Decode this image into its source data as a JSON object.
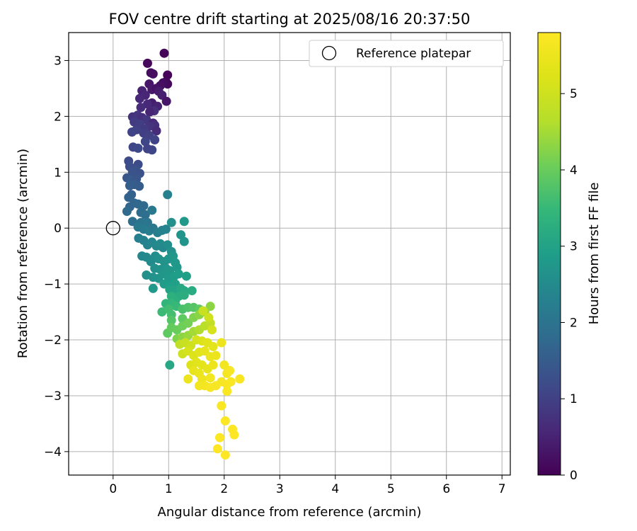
{
  "chart_data": {
    "type": "scatter",
    "title": "FOV centre drift starting at 2025/08/16 20:37:50",
    "xlabel": "Angular distance from reference (arcmin)",
    "ylabel": "Rotation from reference (arcmin)",
    "xlim": [
      -0.8,
      7.15
    ],
    "ylim": [
      -4.42,
      3.5
    ],
    "xticks": [
      "0",
      "1",
      "2",
      "3",
      "4",
      "5",
      "6",
      "7"
    ],
    "yticks": [
      "−4",
      "−3",
      "−2",
      "−1",
      "0",
      "1",
      "2",
      "3"
    ],
    "grid": true,
    "legend": {
      "position": "top-right",
      "entries": [
        "Reference platepar"
      ]
    },
    "reference_point": {
      "x": 0,
      "y": 0
    },
    "colorbar": {
      "label": "Hours from first FF file",
      "range": [
        0,
        5.8
      ],
      "ticks": [
        "0",
        "1",
        "2",
        "3",
        "4",
        "5"
      ],
      "colormap": "viridis"
    },
    "points": [
      [
        0.92,
        3.13,
        0.05
      ],
      [
        0.62,
        2.95,
        0.1
      ],
      [
        0.68,
        2.78,
        0.15
      ],
      [
        0.72,
        2.76,
        0.2
      ],
      [
        0.98,
        2.74,
        0.08
      ],
      [
        0.95,
        2.62,
        0.1
      ],
      [
        0.98,
        2.58,
        0.12
      ],
      [
        0.9,
        2.6,
        0.18
      ],
      [
        0.85,
        2.55,
        0.22
      ],
      [
        0.65,
        2.58,
        0.3
      ],
      [
        0.7,
        2.48,
        0.35
      ],
      [
        0.78,
        2.5,
        0.25
      ],
      [
        0.82,
        2.45,
        0.4
      ],
      [
        0.52,
        2.46,
        0.5
      ],
      [
        0.88,
        2.38,
        0.45
      ],
      [
        0.58,
        2.38,
        0.55
      ],
      [
        0.48,
        2.32,
        0.6
      ],
      [
        0.96,
        2.27,
        0.3
      ],
      [
        0.7,
        2.24,
        0.42
      ],
      [
        0.62,
        2.22,
        0.58
      ],
      [
        0.5,
        2.16,
        0.65
      ],
      [
        0.8,
        2.18,
        0.5
      ],
      [
        0.74,
        2.1,
        0.7
      ],
      [
        0.66,
        2.08,
        0.55
      ],
      [
        0.35,
        1.99,
        0.75
      ],
      [
        0.44,
        2.02,
        0.8
      ],
      [
        0.52,
        1.98,
        0.7
      ],
      [
        0.6,
        1.94,
        0.85
      ],
      [
        0.72,
        1.88,
        0.6
      ],
      [
        0.38,
        1.9,
        0.9
      ],
      [
        0.48,
        1.86,
        0.95
      ],
      [
        0.75,
        1.84,
        0.7
      ],
      [
        0.65,
        1.82,
        0.8
      ],
      [
        0.56,
        1.78,
        0.9
      ],
      [
        0.42,
        1.76,
        1.0
      ],
      [
        0.34,
        1.72,
        1.05
      ],
      [
        0.78,
        1.74,
        0.65
      ],
      [
        0.55,
        1.7,
        0.95
      ],
      [
        0.65,
        1.66,
        1.0
      ],
      [
        0.75,
        1.58,
        1.05
      ],
      [
        0.58,
        1.55,
        1.1
      ],
      [
        0.36,
        1.45,
        1.1
      ],
      [
        0.45,
        1.43,
        1.15
      ],
      [
        0.62,
        1.42,
        1.05
      ],
      [
        0.7,
        1.4,
        1.1
      ],
      [
        0.28,
        1.2,
        1.2
      ],
      [
        0.3,
        1.1,
        1.25
      ],
      [
        0.45,
        1.14,
        1.2
      ],
      [
        0.4,
        1.05,
        1.3
      ],
      [
        0.35,
        1.0,
        1.35
      ],
      [
        0.48,
        0.98,
        1.3
      ],
      [
        0.25,
        0.9,
        1.4
      ],
      [
        0.32,
        0.86,
        1.45
      ],
      [
        0.42,
        0.88,
        1.4
      ],
      [
        0.38,
        0.78,
        1.5
      ],
      [
        0.3,
        0.76,
        1.55
      ],
      [
        0.47,
        0.75,
        1.5
      ],
      [
        0.33,
        0.6,
        1.6
      ],
      [
        0.28,
        0.55,
        1.65
      ],
      [
        0.38,
        0.45,
        1.7
      ],
      [
        0.45,
        0.43,
        1.75
      ],
      [
        0.3,
        0.38,
        1.7
      ],
      [
        0.55,
        0.4,
        1.8
      ],
      [
        0.25,
        0.3,
        1.8
      ],
      [
        0.5,
        0.28,
        1.85
      ],
      [
        0.58,
        0.24,
        1.9
      ],
      [
        0.7,
        0.32,
        2.1
      ],
      [
        0.35,
        0.12,
        1.9
      ],
      [
        0.5,
        0.1,
        2.0
      ],
      [
        0.62,
        0.1,
        2.05
      ],
      [
        0.98,
        0.6,
        2.3
      ],
      [
        0.45,
        0.02,
        2.1
      ],
      [
        0.55,
        -0.02,
        2.15
      ],
      [
        0.65,
        -0.05,
        2.2
      ],
      [
        0.72,
        0.0,
        2.1
      ],
      [
        0.8,
        -0.08,
        2.25
      ],
      [
        0.88,
        -0.04,
        2.3
      ],
      [
        0.95,
        -0.02,
        2.35
      ],
      [
        1.05,
        0.1,
        2.6
      ],
      [
        1.28,
        0.12,
        2.8
      ],
      [
        1.22,
        -0.12,
        2.7
      ],
      [
        0.46,
        -0.18,
        2.25
      ],
      [
        0.55,
        -0.22,
        2.3
      ],
      [
        0.62,
        -0.3,
        2.35
      ],
      [
        0.7,
        -0.25,
        2.4
      ],
      [
        0.78,
        -0.32,
        2.45
      ],
      [
        0.85,
        -0.28,
        2.5
      ],
      [
        0.9,
        -0.35,
        2.45
      ],
      [
        0.98,
        -0.3,
        2.55
      ],
      [
        1.05,
        -0.42,
        2.6
      ],
      [
        1.28,
        -0.24,
        2.7
      ],
      [
        0.52,
        -0.5,
        2.4
      ],
      [
        0.6,
        -0.52,
        2.45
      ],
      [
        0.68,
        -0.6,
        2.5
      ],
      [
        0.76,
        -0.5,
        2.55
      ],
      [
        0.82,
        -0.55,
        2.6
      ],
      [
        0.92,
        -0.6,
        2.65
      ],
      [
        1.0,
        -0.55,
        2.7
      ],
      [
        1.08,
        -0.5,
        2.75
      ],
      [
        1.12,
        -0.62,
        2.8
      ],
      [
        0.75,
        -0.72,
        2.6
      ],
      [
        0.85,
        -0.74,
        2.65
      ],
      [
        0.95,
        -0.72,
        2.7
      ],
      [
        1.02,
        -0.76,
        2.75
      ],
      [
        1.15,
        -0.7,
        2.8
      ],
      [
        0.6,
        -0.84,
        2.6
      ],
      [
        0.72,
        -0.88,
        2.65
      ],
      [
        0.82,
        -0.9,
        2.7
      ],
      [
        0.92,
        -0.82,
        2.75
      ],
      [
        1.0,
        -0.9,
        2.8
      ],
      [
        1.1,
        -0.86,
        2.85
      ],
      [
        1.18,
        -0.82,
        2.9
      ],
      [
        1.32,
        -0.86,
        2.95
      ],
      [
        0.92,
        -1.0,
        2.85
      ],
      [
        1.02,
        -1.02,
        2.9
      ],
      [
        1.12,
        -1.0,
        2.95
      ],
      [
        0.72,
        -1.08,
        2.8
      ],
      [
        1.02,
        -1.1,
        3.0
      ],
      [
        1.12,
        -1.12,
        3.05
      ],
      [
        1.22,
        -1.08,
        3.1
      ],
      [
        1.28,
        -1.12,
        3.15
      ],
      [
        1.42,
        -1.12,
        3.2
      ],
      [
        1.18,
        -1.22,
        3.2
      ],
      [
        1.28,
        -1.2,
        3.25
      ],
      [
        1.05,
        -1.22,
        3.3
      ],
      [
        1.12,
        -1.3,
        3.3
      ],
      [
        0.95,
        -1.35,
        3.4
      ],
      [
        1.05,
        -1.35,
        3.45
      ],
      [
        1.14,
        -1.4,
        3.5
      ],
      [
        0.88,
        -1.5,
        3.55
      ],
      [
        1.0,
        -1.45,
        3.6
      ],
      [
        1.05,
        -1.55,
        3.65
      ],
      [
        1.25,
        -1.45,
        3.7
      ],
      [
        1.35,
        -1.42,
        3.75
      ],
      [
        1.45,
        -1.42,
        3.8
      ],
      [
        1.55,
        -1.45,
        3.9
      ],
      [
        1.75,
        -1.4,
        4.3
      ],
      [
        1.05,
        -1.65,
        3.8
      ],
      [
        1.25,
        -1.62,
        3.9
      ],
      [
        0.98,
        -1.88,
        3.9
      ],
      [
        1.05,
        -1.78,
        3.95
      ],
      [
        1.15,
        -1.82,
        4.0
      ],
      [
        1.25,
        -1.75,
        4.05
      ],
      [
        1.35,
        -1.7,
        4.1
      ],
      [
        1.45,
        -1.6,
        4.2
      ],
      [
        1.55,
        -1.55,
        4.3
      ],
      [
        1.65,
        -1.5,
        4.4
      ],
      [
        1.15,
        -1.98,
        4.2
      ],
      [
        1.25,
        -1.95,
        4.3
      ],
      [
        1.35,
        -1.92,
        4.4
      ],
      [
        1.45,
        -1.85,
        4.5
      ],
      [
        1.55,
        -1.82,
        4.6
      ],
      [
        1.65,
        -1.75,
        4.7
      ],
      [
        1.75,
        -1.7,
        4.8
      ],
      [
        1.62,
        -1.48,
        4.9
      ],
      [
        1.72,
        -1.6,
        5.0
      ],
      [
        1.78,
        -1.82,
        5.1
      ],
      [
        1.2,
        -2.08,
        4.8
      ],
      [
        1.3,
        -2.05,
        4.9
      ],
      [
        1.4,
        -2.1,
        5.0
      ],
      [
        1.5,
        -2.0,
        5.1
      ],
      [
        1.6,
        -2.02,
        5.2
      ],
      [
        1.7,
        -2.05,
        5.3
      ],
      [
        1.8,
        -2.12,
        5.35
      ],
      [
        1.25,
        -2.25,
        5.0
      ],
      [
        1.35,
        -2.2,
        5.1
      ],
      [
        1.45,
        -2.28,
        5.2
      ],
      [
        1.55,
        -2.22,
        5.3
      ],
      [
        1.65,
        -2.2,
        5.4
      ],
      [
        1.75,
        -2.3,
        5.45
      ],
      [
        1.85,
        -2.28,
        5.5
      ],
      [
        1.95,
        -2.05,
        5.5
      ],
      [
        1.02,
        -2.45,
        3.1
      ],
      [
        1.4,
        -2.45,
        5.2
      ],
      [
        1.5,
        -2.4,
        5.3
      ],
      [
        1.6,
        -2.45,
        5.35
      ],
      [
        1.7,
        -2.52,
        5.4
      ],
      [
        1.8,
        -2.45,
        5.5
      ],
      [
        1.45,
        -2.55,
        5.4
      ],
      [
        1.55,
        -2.6,
        5.45
      ],
      [
        1.35,
        -2.7,
        5.5
      ],
      [
        1.6,
        -2.7,
        5.55
      ],
      [
        1.75,
        -2.68,
        5.6
      ],
      [
        1.55,
        -2.82,
        5.6
      ],
      [
        1.65,
        -2.82,
        5.65
      ],
      [
        1.75,
        -2.85,
        5.7
      ],
      [
        1.85,
        -2.82,
        5.7
      ],
      [
        1.95,
        -2.75,
        5.7
      ],
      [
        2.0,
        -2.45,
        5.6
      ],
      [
        2.05,
        -2.6,
        5.65
      ],
      [
        2.1,
        -2.55,
        5.7
      ],
      [
        2.05,
        -2.8,
        5.72
      ],
      [
        2.12,
        -2.75,
        5.75
      ],
      [
        2.28,
        -2.7,
        5.72
      ],
      [
        2.05,
        -2.92,
        5.75
      ],
      [
        1.95,
        -3.18,
        5.75
      ],
      [
        2.02,
        -3.45,
        5.78
      ],
      [
        2.15,
        -3.6,
        5.78
      ],
      [
        2.18,
        -3.7,
        5.8
      ],
      [
        1.92,
        -3.75,
        5.78
      ],
      [
        1.88,
        -3.95,
        5.8
      ],
      [
        2.02,
        -4.06,
        5.8
      ]
    ]
  }
}
